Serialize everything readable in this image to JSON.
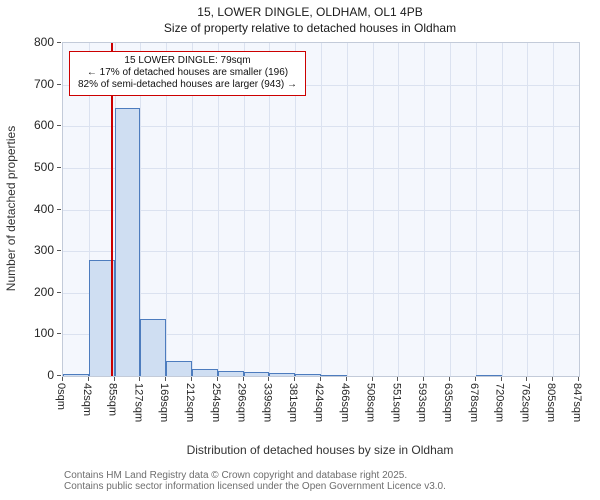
{
  "chart_data": {
    "type": "bar",
    "title": "15, LOWER DINGLE, OLDHAM, OL1 4PB",
    "subtitle": "Size of property relative to detached houses in Oldham",
    "xlabel": "Distribution of detached houses by size in Oldham",
    "ylabel": "Number of detached properties",
    "categories": [
      "0sqm",
      "42sqm",
      "85sqm",
      "127sqm",
      "169sqm",
      "212sqm",
      "254sqm",
      "296sqm",
      "339sqm",
      "381sqm",
      "424sqm",
      "466sqm",
      "508sqm",
      "551sqm",
      "593sqm",
      "635sqm",
      "678sqm",
      "720sqm",
      "762sqm",
      "805sqm",
      "847sqm"
    ],
    "bin_edges_sqm": [
      0,
      42,
      85,
      127,
      169,
      212,
      254,
      296,
      339,
      381,
      424,
      466,
      508,
      551,
      593,
      635,
      678,
      720,
      762,
      805,
      847
    ],
    "values": [
      4,
      278,
      645,
      137,
      35,
      18,
      11,
      10,
      8,
      5,
      3,
      0,
      0,
      0,
      0,
      0,
      3,
      0,
      0,
      0
    ],
    "ylim": [
      0,
      800
    ],
    "ytick_step": 100,
    "grid": true,
    "bar_fill": "#cfdef2",
    "bar_edge": "#4d7cbe",
    "plot_background": "#f4f7fd",
    "gridline_color": "#dbe2f0",
    "marker": {
      "value_sqm": 79,
      "color": "#cc0000"
    },
    "annotation": {
      "line1": "15 LOWER DINGLE: 79sqm",
      "line2": "← 17% of detached houses are smaller (196)",
      "line3": "82% of semi-detached houses are larger (943) →",
      "border_color": "#cc0000"
    }
  },
  "footer": {
    "line1": "Contains HM Land Registry data © Crown copyright and database right 2025.",
    "line2": "Contains public sector information licensed under the Open Government Licence v3.0."
  }
}
